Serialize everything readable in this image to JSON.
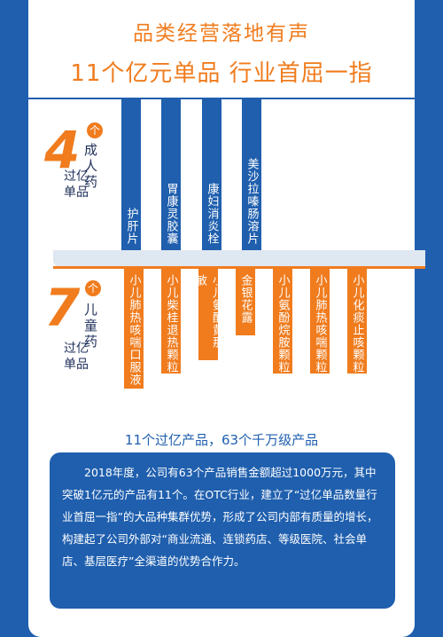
{
  "title_line1": "品类经营落地有声",
  "title_line2": "11个亿元单品  行业首屈一指",
  "adult": {
    "count": "4",
    "badge": "个",
    "category": "成人药",
    "sub": "过亿单品",
    "items": [
      "护肝片",
      "胃康灵胶囊",
      "康妇消炎栓",
      "美沙拉嗪肠溶片"
    ]
  },
  "children": {
    "count": "7",
    "badge": "个",
    "category": "儿童药",
    "sub": "过亿单品",
    "items": [
      "小儿肺热咳喘口服液",
      "小儿柴桂退热颗粒",
      "小儿氨酚黄那敏",
      "金银花露",
      "小儿氨酚烷胺颗粒",
      "小儿肺热咳喘颗粒",
      "小儿化痰止咳颗粒"
    ]
  },
  "summary": "11个过亿产品，63个千万级产品",
  "paragraph": "2018年度，公司有63个产品销售金额超过1000万元，其中突破1亿元的产品有11个。在OTC行业，建立了“过亿单品数量行业首屈一指”的大品种集群优势，形成了公司内部有质量的增长，构建起了公司外部对“商业流通、连锁药店、等级医院、社会单店、基层医疗”全渠道的优势合作力。",
  "colors": {
    "blue": "#1f5fae",
    "orange": "#f07c1e"
  }
}
